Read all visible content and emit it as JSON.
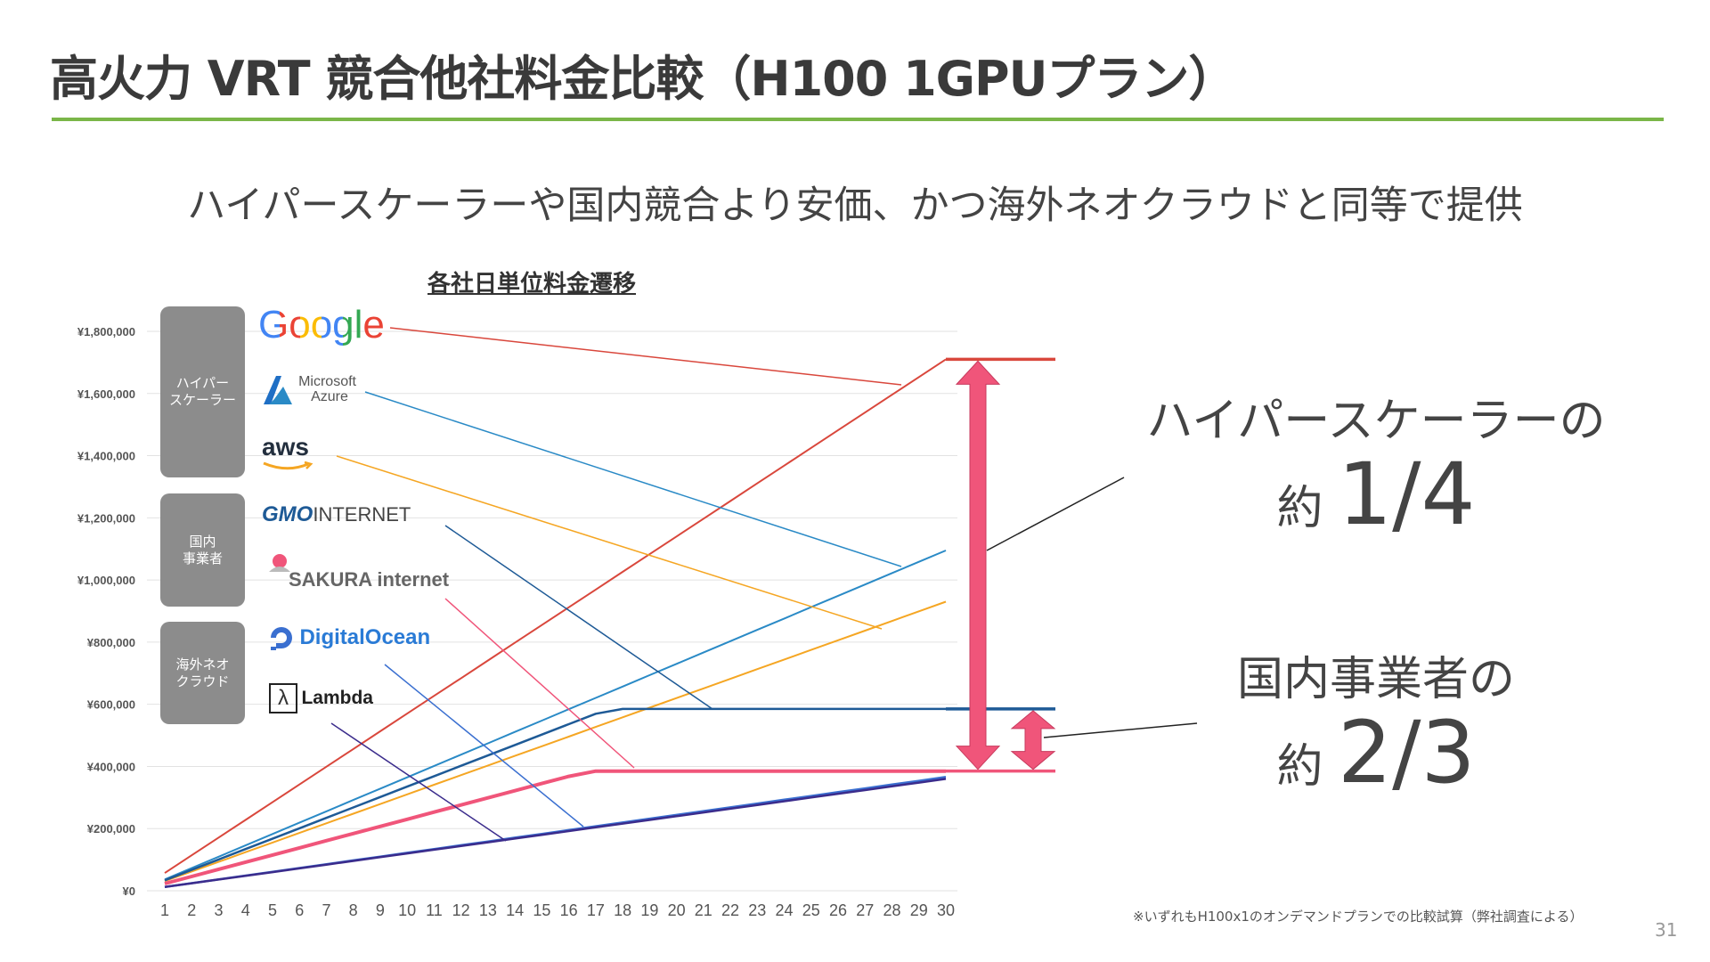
{
  "title": "高火力 VRT 競合他社料金比較（H100 1GPUプラン）",
  "subtitle": "ハイパースケーラーや国内競合より安価、かつ海外ネオクラウドと同等で提供",
  "groups": {
    "hyperscaler": "ハイパー\nスケーラー",
    "domestic": "国内\n事業者",
    "neocloud": "海外ネオ\nクラウド"
  },
  "logos": {
    "google": "Google",
    "azure_line1": "Microsoft",
    "azure_line2": "Azure",
    "aws": "aws",
    "gmo_a": "GMO",
    "gmo_b": "INTERNET",
    "sakura": "SAKURA internet",
    "digitalocean": "DigitalOcean",
    "lambda_symbol": "λ",
    "lambda": "Lambda"
  },
  "callouts": {
    "hyper_line1": "ハイパースケーラーの",
    "hyper_prefix": "約",
    "hyper_ratio": "1/4",
    "domestic_line1": "国内事業者の",
    "domestic_prefix": "約",
    "domestic_ratio": "2/3"
  },
  "footnote": "※いずれもH100x1のオンデマンドプランでの比較試算（弊社調査による）",
  "page_number": "31",
  "colors": {
    "accent_green": "#7ab648",
    "arrow_pink": "#f0557a",
    "google": "#d9473c",
    "azure": "#2a8ac6",
    "aws": "#f5a623",
    "gmo": "#1e5a96",
    "sakura": "#f0557a",
    "digitalocean": "#3a6fd0",
    "lambda": "#3b2c8c"
  },
  "chart_data": {
    "type": "line",
    "title": "各社日単位料金遷移",
    "xlabel": "",
    "ylabel": "",
    "x": [
      1,
      2,
      3,
      4,
      5,
      6,
      7,
      8,
      9,
      10,
      11,
      12,
      13,
      14,
      15,
      16,
      17,
      18,
      19,
      20,
      21,
      22,
      23,
      24,
      25,
      26,
      27,
      28,
      29,
      30
    ],
    "ylim": [
      0,
      1800000
    ],
    "yticks": [
      0,
      200000,
      400000,
      600000,
      800000,
      1000000,
      1200000,
      1400000,
      1600000,
      1800000
    ],
    "ytick_labels": [
      "¥0",
      "¥200,000",
      "¥400,000",
      "¥600,000",
      "¥800,000",
      "¥1,000,000",
      "¥1,200,000",
      "¥1,400,000",
      "¥1,600,000",
      "¥1,800,000"
    ],
    "grid": true,
    "series": [
      {
        "name": "Google",
        "group": "hyperscaler",
        "color": "#d9473c",
        "daily": 57000,
        "cap": null,
        "width": 2
      },
      {
        "name": "Microsoft Azure",
        "group": "hyperscaler",
        "color": "#2a8ac6",
        "daily": 36500,
        "cap": null,
        "width": 2
      },
      {
        "name": "aws",
        "group": "hyperscaler",
        "color": "#f5a623",
        "daily": 31000,
        "cap": null,
        "width": 2
      },
      {
        "name": "GMO INTERNET",
        "group": "domestic",
        "color": "#1e5a96",
        "daily": 33500,
        "cap": 585000,
        "width": 2.5
      },
      {
        "name": "SAKURA internet",
        "group": "domestic",
        "color": "#f0557a",
        "daily": 23000,
        "cap": 385000,
        "width": 4
      },
      {
        "name": "DigitalOcean",
        "group": "neocloud",
        "color": "#3a6fd0",
        "daily": 12200,
        "cap": null,
        "width": 2.5
      },
      {
        "name": "Lambda",
        "group": "neocloud",
        "color": "#3b2c8c",
        "daily": 12000,
        "cap": null,
        "width": 2.5
      }
    ]
  }
}
